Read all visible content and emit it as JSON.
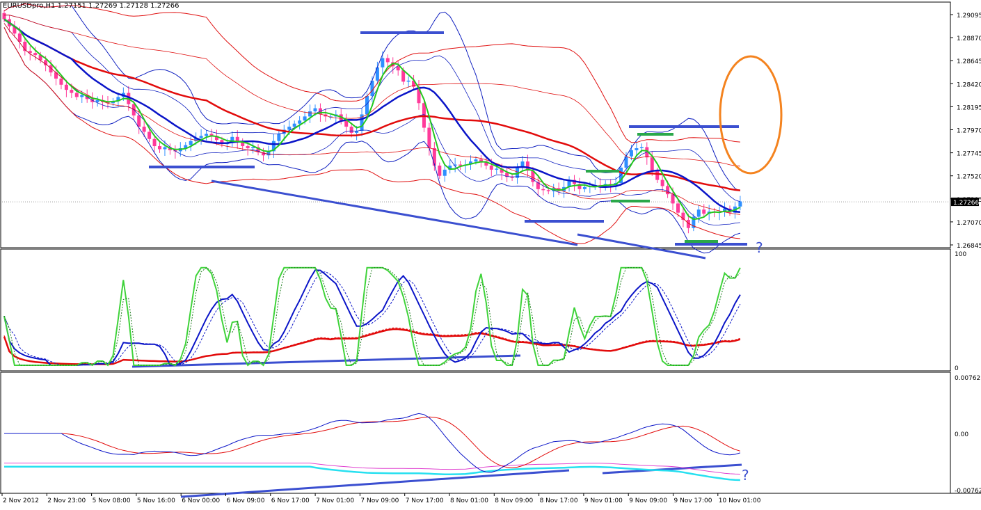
{
  "window": {
    "symbol": "EURUSDpro,H1",
    "ohlc": "1.27151 1.27269 1.27128 1.27266"
  },
  "colors": {
    "bull": "#2f8fff",
    "bear": "#ff3a9a",
    "ma_fast": "#23c81e",
    "ma_mid": "#0a14c8",
    "ma_slow": "#e20b0b",
    "band_blue": "#1020c0",
    "band_red": "#e01010",
    "annotation_blue": "#3b4fd0",
    "annotation_green": "#2aa84a",
    "annotation_orange": "#f4831f",
    "stoch_green": "#3fd33a",
    "stoch_blue": "#0a14c8",
    "stoch_red": "#e20b0b",
    "macd_cyan": "#27e0f0",
    "macd_magenta": "#e040d0",
    "macd_blue": "#0a14c8",
    "macd_red": "#e20b0b",
    "grid": "#c8c8c8",
    "price_label_bg": "#000000"
  },
  "chart_data": [
    {
      "type": "candlestick",
      "panel": "price",
      "symbol": "EURUSDpro,H1",
      "y_ticks": [
        "1.29095",
        "1.28870",
        "1.28645",
        "1.28420",
        "1.28195",
        "1.27970",
        "1.27745",
        "1.27520",
        "1.27295",
        "1.27070",
        "1.26845"
      ],
      "ylim": [
        1.26845,
        1.29095
      ],
      "current_price_label": "1.27266",
      "x_ticks": [
        "2 Nov 2012",
        "2 Nov 23:00",
        "5 Nov 08:00",
        "5 Nov 16:00",
        "6 Nov 00:00",
        "6 Nov 09:00",
        "6 Nov 17:00",
        "7 Nov 01:00",
        "7 Nov 09:00",
        "7 Nov 17:00",
        "8 Nov 01:00",
        "8 Nov 09:00",
        "8 Nov 17:00",
        "9 Nov 01:00",
        "9 Nov 09:00",
        "9 Nov 17:00",
        "10 Nov 01:00"
      ],
      "close": [
        1.2905,
        1.2898,
        1.2891,
        1.2883,
        1.2874,
        1.2872,
        1.287,
        1.2865,
        1.286,
        1.2853,
        1.2847,
        1.2841,
        1.2836,
        1.2833,
        1.2829,
        1.2831,
        1.2827,
        1.2824,
        1.2826,
        1.2824,
        1.2823,
        1.2825,
        1.2829,
        1.2833,
        1.2822,
        1.2811,
        1.28,
        1.2795,
        1.2788,
        1.2781,
        1.2778,
        1.278,
        1.2777,
        1.2776,
        1.2779,
        1.2782,
        1.2786,
        1.2789,
        1.2791,
        1.2793,
        1.2791,
        1.2787,
        1.2783,
        1.2784,
        1.279,
        1.2785,
        1.2781,
        1.2779,
        1.278,
        1.2775,
        1.2772,
        1.2776,
        1.2786,
        1.2793,
        1.2797,
        1.28,
        1.2803,
        1.2806,
        1.281,
        1.2815,
        1.2818,
        1.2812,
        1.281,
        1.281,
        1.2812,
        1.2806,
        1.28,
        1.2794,
        1.2796,
        1.2812,
        1.283,
        1.2845,
        1.2858,
        1.2867,
        1.2863,
        1.2859,
        1.2855,
        1.2844,
        1.2845,
        1.2839,
        1.2823,
        1.2799,
        1.2779,
        1.2762,
        1.2752,
        1.2758,
        1.2762,
        1.2763,
        1.2762,
        1.2763,
        1.2766,
        1.2768,
        1.2766,
        1.2762,
        1.2758,
        1.2759,
        1.2755,
        1.2751,
        1.275,
        1.276,
        1.2766,
        1.2757,
        1.2746,
        1.2739,
        1.2738,
        1.2737,
        1.274,
        1.2737,
        1.2741,
        1.2748,
        1.2744,
        1.2739,
        1.2741,
        1.2742,
        1.2743,
        1.2742,
        1.2744,
        1.2743,
        1.2745,
        1.276,
        1.2771,
        1.2777,
        1.2779,
        1.278,
        1.277,
        1.2757,
        1.2748,
        1.2742,
        1.2734,
        1.2725,
        1.2716,
        1.2709,
        1.2701,
        1.2712,
        1.2719,
        1.2715,
        1.2717,
        1.2716,
        1.2717,
        1.272,
        1.2716,
        1.2722,
        1.2727
      ]
    },
    {
      "type": "line",
      "panel": "stochastic",
      "y_ticks": [
        "100",
        "0"
      ],
      "ylim": [
        0,
        100
      ]
    },
    {
      "type": "line",
      "panel": "macd",
      "y_ticks": [
        "0.00762",
        "0.00",
        "-0.00762"
      ],
      "ylim": [
        -0.00762,
        0.00762
      ]
    }
  ],
  "annotations": {
    "question_mark": "?"
  }
}
